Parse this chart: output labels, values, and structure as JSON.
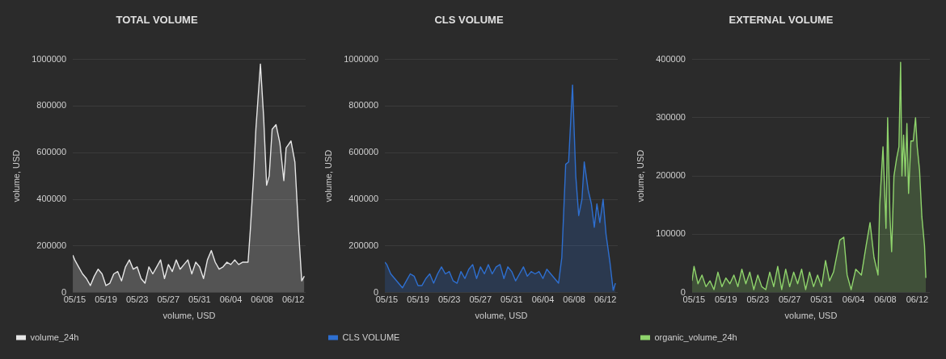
{
  "chart_data": [
    {
      "type": "area",
      "title": "TOTAL VOLUME",
      "xlabel": "volume, USD",
      "ylabel": "volume, USD",
      "xlim": [
        "--05-14T18:00",
        "--06-13T14:00"
      ],
      "xticks": [
        {
          "value": "--05-15",
          "label": "05/15"
        },
        {
          "value": "--05-19",
          "label": "05/19"
        },
        {
          "value": "--05-23",
          "label": "05/23"
        },
        {
          "value": "--05-27",
          "label": "05/27"
        },
        {
          "value": "--05-31",
          "label": "05/31"
        },
        {
          "value": "--06-04",
          "label": "06/04"
        },
        {
          "value": "--06-08",
          "label": "06/08"
        },
        {
          "value": "--06-12",
          "label": "06/12"
        }
      ],
      "ylim": [
        0,
        1000000
      ],
      "yticks": [
        0,
        200000,
        400000,
        600000,
        800000,
        1000000
      ],
      "grid": "y",
      "legend": "bottom left",
      "marker": "none",
      "line_style": "solid",
      "series": [
        {
          "name": "volume_24h",
          "color": "#e6e6e6",
          "x": [
            "--05-14T18:00",
            "--05-15T00:00",
            "--05-15T12:00",
            "--05-16T00:00",
            "--05-16T12:00",
            "--05-17T00:00",
            "--05-17T12:00",
            "--05-18T00:00",
            "--05-18T12:00",
            "--05-19T00:00",
            "--05-19T12:00",
            "--05-20T00:00",
            "--05-20T12:00",
            "--05-21T00:00",
            "--05-21T12:00",
            "--05-22T00:00",
            "--05-22T12:00",
            "--05-23T00:00",
            "--05-23T12:00",
            "--05-24T00:00",
            "--05-24T12:00",
            "--05-25T00:00",
            "--05-25T12:00",
            "--05-26T00:00",
            "--05-26T12:00",
            "--05-27T00:00",
            "--05-27T12:00",
            "--05-28T00:00",
            "--05-28T12:00",
            "--05-29T00:00",
            "--05-29T12:00",
            "--05-30T00:00",
            "--05-30T12:00",
            "--05-31T00:00",
            "--05-31T12:00",
            "--06-01T00:00",
            "--06-01T12:00",
            "--06-02T00:00",
            "--06-02T12:00",
            "--06-03T00:00",
            "--06-03T12:00",
            "--06-04T00:00",
            "--06-04T12:00",
            "--06-05T00:00",
            "--06-05T12:00",
            "--06-06T05:00",
            "--06-06T12:00",
            "--06-06T22:00",
            "--06-07T05:00",
            "--06-07T19:00",
            "--06-08T05:00",
            "--06-08T14:00",
            "--06-08T22:00",
            "--06-09T07:00",
            "--06-09T19:00",
            "--06-10T07:00",
            "--06-10T19:00",
            "--06-11T02:00",
            "--06-11T17:00",
            "--06-12T05:00",
            "--06-12T17:00",
            "--06-13T02:00",
            "--06-13T10:00"
          ],
          "values": [
            160000,
            140000,
            110000,
            80000,
            60000,
            30000,
            70000,
            100000,
            80000,
            30000,
            40000,
            80000,
            90000,
            50000,
            110000,
            140000,
            100000,
            110000,
            60000,
            40000,
            110000,
            80000,
            110000,
            140000,
            60000,
            120000,
            90000,
            140000,
            100000,
            120000,
            140000,
            80000,
            130000,
            110000,
            60000,
            140000,
            180000,
            130000,
            100000,
            110000,
            130000,
            120000,
            140000,
            120000,
            130000,
            130000,
            270000,
            500000,
            700000,
            980000,
            750000,
            460000,
            500000,
            700000,
            720000,
            640000,
            480000,
            620000,
            650000,
            560000,
            250000,
            50000,
            70000
          ]
        }
      ]
    },
    {
      "type": "area",
      "title": "CLS VOLUME",
      "xlabel": "volume, USD",
      "ylabel": "volume, USD",
      "xlim": [
        "--05-14T18:00",
        "--06-13T14:00"
      ],
      "xticks": [
        {
          "value": "--05-15",
          "label": "05/15"
        },
        {
          "value": "--05-19",
          "label": "05/19"
        },
        {
          "value": "--05-23",
          "label": "05/23"
        },
        {
          "value": "--05-27",
          "label": "05/27"
        },
        {
          "value": "--05-31",
          "label": "05/31"
        },
        {
          "value": "--06-04",
          "label": "06/04"
        },
        {
          "value": "--06-08",
          "label": "06/08"
        },
        {
          "value": "--06-12",
          "label": "06/12"
        }
      ],
      "ylim": [
        0,
        1000000
      ],
      "yticks": [
        0,
        200000,
        400000,
        600000,
        800000,
        1000000
      ],
      "grid": "y",
      "legend": "bottom left",
      "marker": "none",
      "line_style": "solid",
      "series": [
        {
          "name": "CLS VOLUME",
          "color": "#2e6fd0",
          "x": [
            "--05-14T18:00",
            "--05-15T00:00",
            "--05-15T12:00",
            "--05-16T00:00",
            "--05-16T12:00",
            "--05-17T00:00",
            "--05-17T12:00",
            "--05-18T00:00",
            "--05-18T12:00",
            "--05-19T00:00",
            "--05-19T12:00",
            "--05-20T00:00",
            "--05-20T12:00",
            "--05-21T00:00",
            "--05-21T12:00",
            "--05-22T00:00",
            "--05-22T12:00",
            "--05-23T00:00",
            "--05-23T12:00",
            "--05-24T00:00",
            "--05-24T12:00",
            "--05-25T00:00",
            "--05-25T12:00",
            "--05-26T00:00",
            "--05-26T12:00",
            "--05-27T00:00",
            "--05-27T12:00",
            "--05-28T00:00",
            "--05-28T12:00",
            "--05-29T00:00",
            "--05-29T12:00",
            "--05-30T00:00",
            "--05-30T12:00",
            "--05-31T00:00",
            "--05-31T12:00",
            "--06-01T00:00",
            "--06-01T12:00",
            "--06-02T00:00",
            "--06-02T12:00",
            "--06-03T00:00",
            "--06-03T12:00",
            "--06-04T00:00",
            "--06-04T12:00",
            "--06-05T00:00",
            "--06-05T12:00",
            "--06-06T00:00",
            "--06-06T10:00",
            "--06-06T22:00",
            "--06-07T07:00",
            "--06-07T19:00",
            "--06-08T05:00",
            "--06-08T14:00",
            "--06-09T00:00",
            "--06-09T07:00",
            "--06-09T19:00",
            "--06-10T05:00",
            "--06-10T14:00",
            "--06-10T22:00",
            "--06-11T07:00",
            "--06-11T17:00",
            "--06-12T02:00",
            "--06-12T14:00",
            "--06-13T00:00",
            "--06-13T07:00"
          ],
          "values": [
            130000,
            120000,
            80000,
            60000,
            40000,
            20000,
            50000,
            80000,
            70000,
            30000,
            30000,
            60000,
            80000,
            40000,
            80000,
            110000,
            80000,
            90000,
            50000,
            40000,
            90000,
            60000,
            100000,
            120000,
            60000,
            110000,
            80000,
            120000,
            80000,
            110000,
            120000,
            60000,
            110000,
            90000,
            50000,
            80000,
            110000,
            70000,
            90000,
            80000,
            90000,
            60000,
            100000,
            80000,
            60000,
            40000,
            150000,
            550000,
            560000,
            890000,
            500000,
            330000,
            400000,
            560000,
            440000,
            380000,
            280000,
            380000,
            300000,
            400000,
            250000,
            130000,
            10000,
            40000
          ]
        }
      ]
    },
    {
      "type": "area",
      "title": "EXTERNAL VOLUME",
      "xlabel": "volume, USD",
      "ylabel": "volume, USD",
      "xlim": [
        "--05-14T18:00",
        "--06-13T14:00"
      ],
      "xticks": [
        {
          "value": "--05-15",
          "label": "05/15"
        },
        {
          "value": "--05-19",
          "label": "05/19"
        },
        {
          "value": "--05-23",
          "label": "05/23"
        },
        {
          "value": "--05-27",
          "label": "05/27"
        },
        {
          "value": "--05-31",
          "label": "05/31"
        },
        {
          "value": "--06-04",
          "label": "06/04"
        },
        {
          "value": "--06-08",
          "label": "06/08"
        },
        {
          "value": "--06-12",
          "label": "06/12"
        }
      ],
      "ylim": [
        0,
        400000
      ],
      "yticks": [
        0,
        100000,
        200000,
        300000,
        400000
      ],
      "grid": "y",
      "legend": "bottom left",
      "marker": "none",
      "line_style": "solid",
      "series": [
        {
          "name": "organic_volume_24h",
          "color": "#8fd46c",
          "x": [
            "--05-14T18:00",
            "--05-15T00:00",
            "--05-15T12:00",
            "--05-16T00:00",
            "--05-16T12:00",
            "--05-17T00:00",
            "--05-17T12:00",
            "--05-18T00:00",
            "--05-18T12:00",
            "--05-19T00:00",
            "--05-19T12:00",
            "--05-20T00:00",
            "--05-20T12:00",
            "--05-21T00:00",
            "--05-21T12:00",
            "--05-22T00:00",
            "--05-22T12:00",
            "--05-23T00:00",
            "--05-23T12:00",
            "--05-24T00:00",
            "--05-24T12:00",
            "--05-25T00:00",
            "--05-25T12:00",
            "--05-26T00:00",
            "--05-26T12:00",
            "--05-27T00:00",
            "--05-27T12:00",
            "--05-28T00:00",
            "--05-28T12:00",
            "--05-29T00:00",
            "--05-29T12:00",
            "--05-30T00:00",
            "--05-30T12:00",
            "--05-31T00:00",
            "--05-31T12:00",
            "--06-01T00:00",
            "--06-01T12:00",
            "--06-02T07:00",
            "--06-02T19:00",
            "--06-03T05:00",
            "--06-03T17:00",
            "--06-04T07:00",
            "--06-05T00:00",
            "--06-05T14:00",
            "--06-06T02:00",
            "--06-06T14:00",
            "--06-07T02:00",
            "--06-07T07:00",
            "--06-07T17:00",
            "--06-08T02:00",
            "--06-08T07:00",
            "--06-08T14:00",
            "--06-08T19:00",
            "--06-09T02:00",
            "--06-09T10:00",
            "--06-09T17:00",
            "--06-09T22:00",
            "--06-10T02:00",
            "--06-10T07:00",
            "--06-10T12:00",
            "--06-10T17:00",
            "--06-10T22:00",
            "--06-11T05:00",
            "--06-11T12:00",
            "--06-11T19:00",
            "--06-12T00:00",
            "--06-12T07:00",
            "--06-12T14:00",
            "--06-12T22:00",
            "--06-13T02:00"
          ],
          "values": [
            20000,
            45000,
            15000,
            30000,
            10000,
            20000,
            5000,
            35000,
            10000,
            25000,
            15000,
            30000,
            10000,
            40000,
            15000,
            35000,
            5000,
            30000,
            10000,
            5000,
            35000,
            10000,
            45000,
            5000,
            40000,
            10000,
            35000,
            15000,
            40000,
            5000,
            35000,
            10000,
            30000,
            10000,
            55000,
            20000,
            35000,
            90000,
            95000,
            30000,
            5000,
            40000,
            30000,
            80000,
            120000,
            60000,
            30000,
            150000,
            250000,
            110000,
            300000,
            130000,
            70000,
            200000,
            230000,
            250000,
            395000,
            200000,
            270000,
            200000,
            290000,
            170000,
            260000,
            260000,
            300000,
            250000,
            210000,
            130000,
            80000,
            25000
          ]
        }
      ]
    }
  ]
}
